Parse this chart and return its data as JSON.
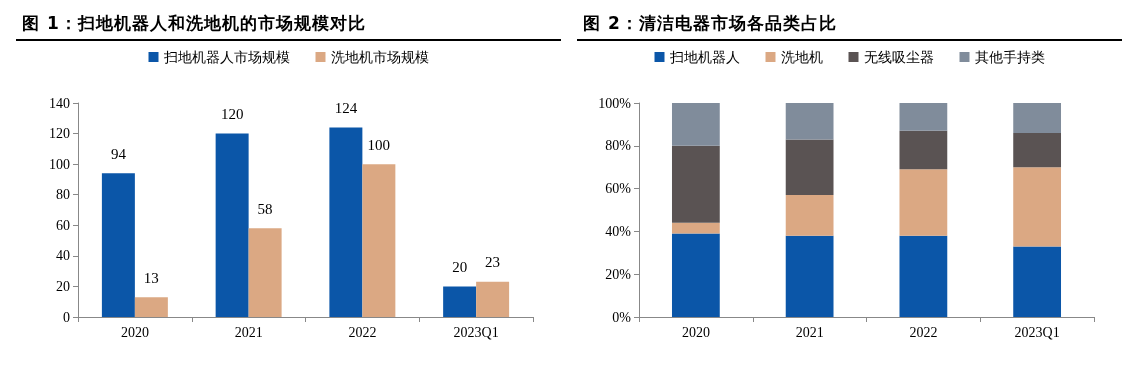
{
  "chart_data": [
    {
      "type": "bar",
      "title": "图 1：扫地机器人和洗地机的市场规模对比",
      "categories": [
        "2020",
        "2021",
        "2022",
        "2023Q1"
      ],
      "series": [
        {
          "name": "扫地机器人市场规模",
          "color": "#0b56a8",
          "values": [
            94,
            120,
            124,
            20
          ]
        },
        {
          "name": "洗地机市场规模",
          "color": "#dba883",
          "values": [
            13,
            58,
            100,
            23
          ]
        }
      ],
      "ylim": [
        0,
        140
      ],
      "yticks": [
        0,
        20,
        40,
        60,
        80,
        100,
        120,
        140
      ],
      "data_labels": true,
      "grid": false,
      "legend": "top"
    },
    {
      "type": "bar",
      "title": "图 2：清洁电器市场各品类占比",
      "categories": [
        "2020",
        "2021",
        "2022",
        "2023Q1"
      ],
      "stacked": true,
      "series": [
        {
          "name": "扫地机器人",
          "color": "#0b56a8",
          "values": [
            39,
            38,
            38,
            33
          ]
        },
        {
          "name": "洗地机",
          "color": "#dba883",
          "values": [
            5,
            19,
            31,
            37
          ]
        },
        {
          "name": "无线吸尘器",
          "color": "#5a5353",
          "values": [
            36,
            26,
            18,
            16
          ]
        },
        {
          "name": "其他手持类",
          "color": "#808c9b",
          "values": [
            20,
            17,
            13,
            14
          ]
        }
      ],
      "ylim": [
        0,
        100
      ],
      "yticks": [
        {
          "value": 0,
          "label": "0%"
        },
        {
          "value": 20,
          "label": "20%"
        },
        {
          "value": 40,
          "label": "40%"
        },
        {
          "value": 60,
          "label": "60%"
        },
        {
          "value": 80,
          "label": "80%"
        },
        {
          "value": 100,
          "label": "100%"
        }
      ],
      "grid": false,
      "legend": "top"
    }
  ]
}
